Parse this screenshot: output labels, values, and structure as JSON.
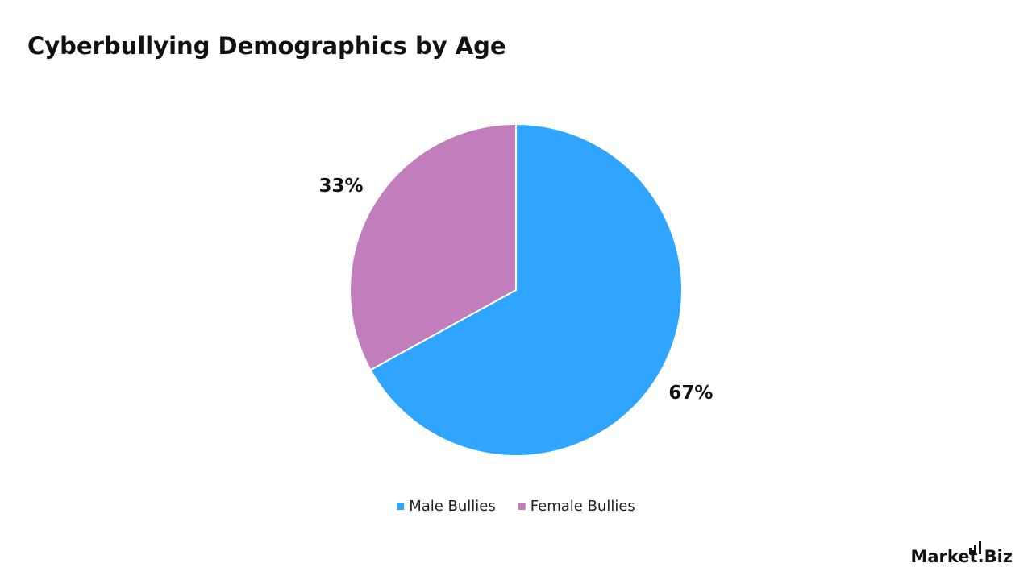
{
  "chart_data": {
    "type": "pie",
    "title": "Cyberbullying Demographics by Age",
    "categories": [
      "Male Bullies",
      "Female Bullies"
    ],
    "values": [
      67,
      33
    ],
    "value_labels": [
      "67%",
      "33%"
    ],
    "colors": [
      "#30a5ff",
      "#c27dbd"
    ],
    "legend": "bottom"
  },
  "brand": "Market.Biz"
}
